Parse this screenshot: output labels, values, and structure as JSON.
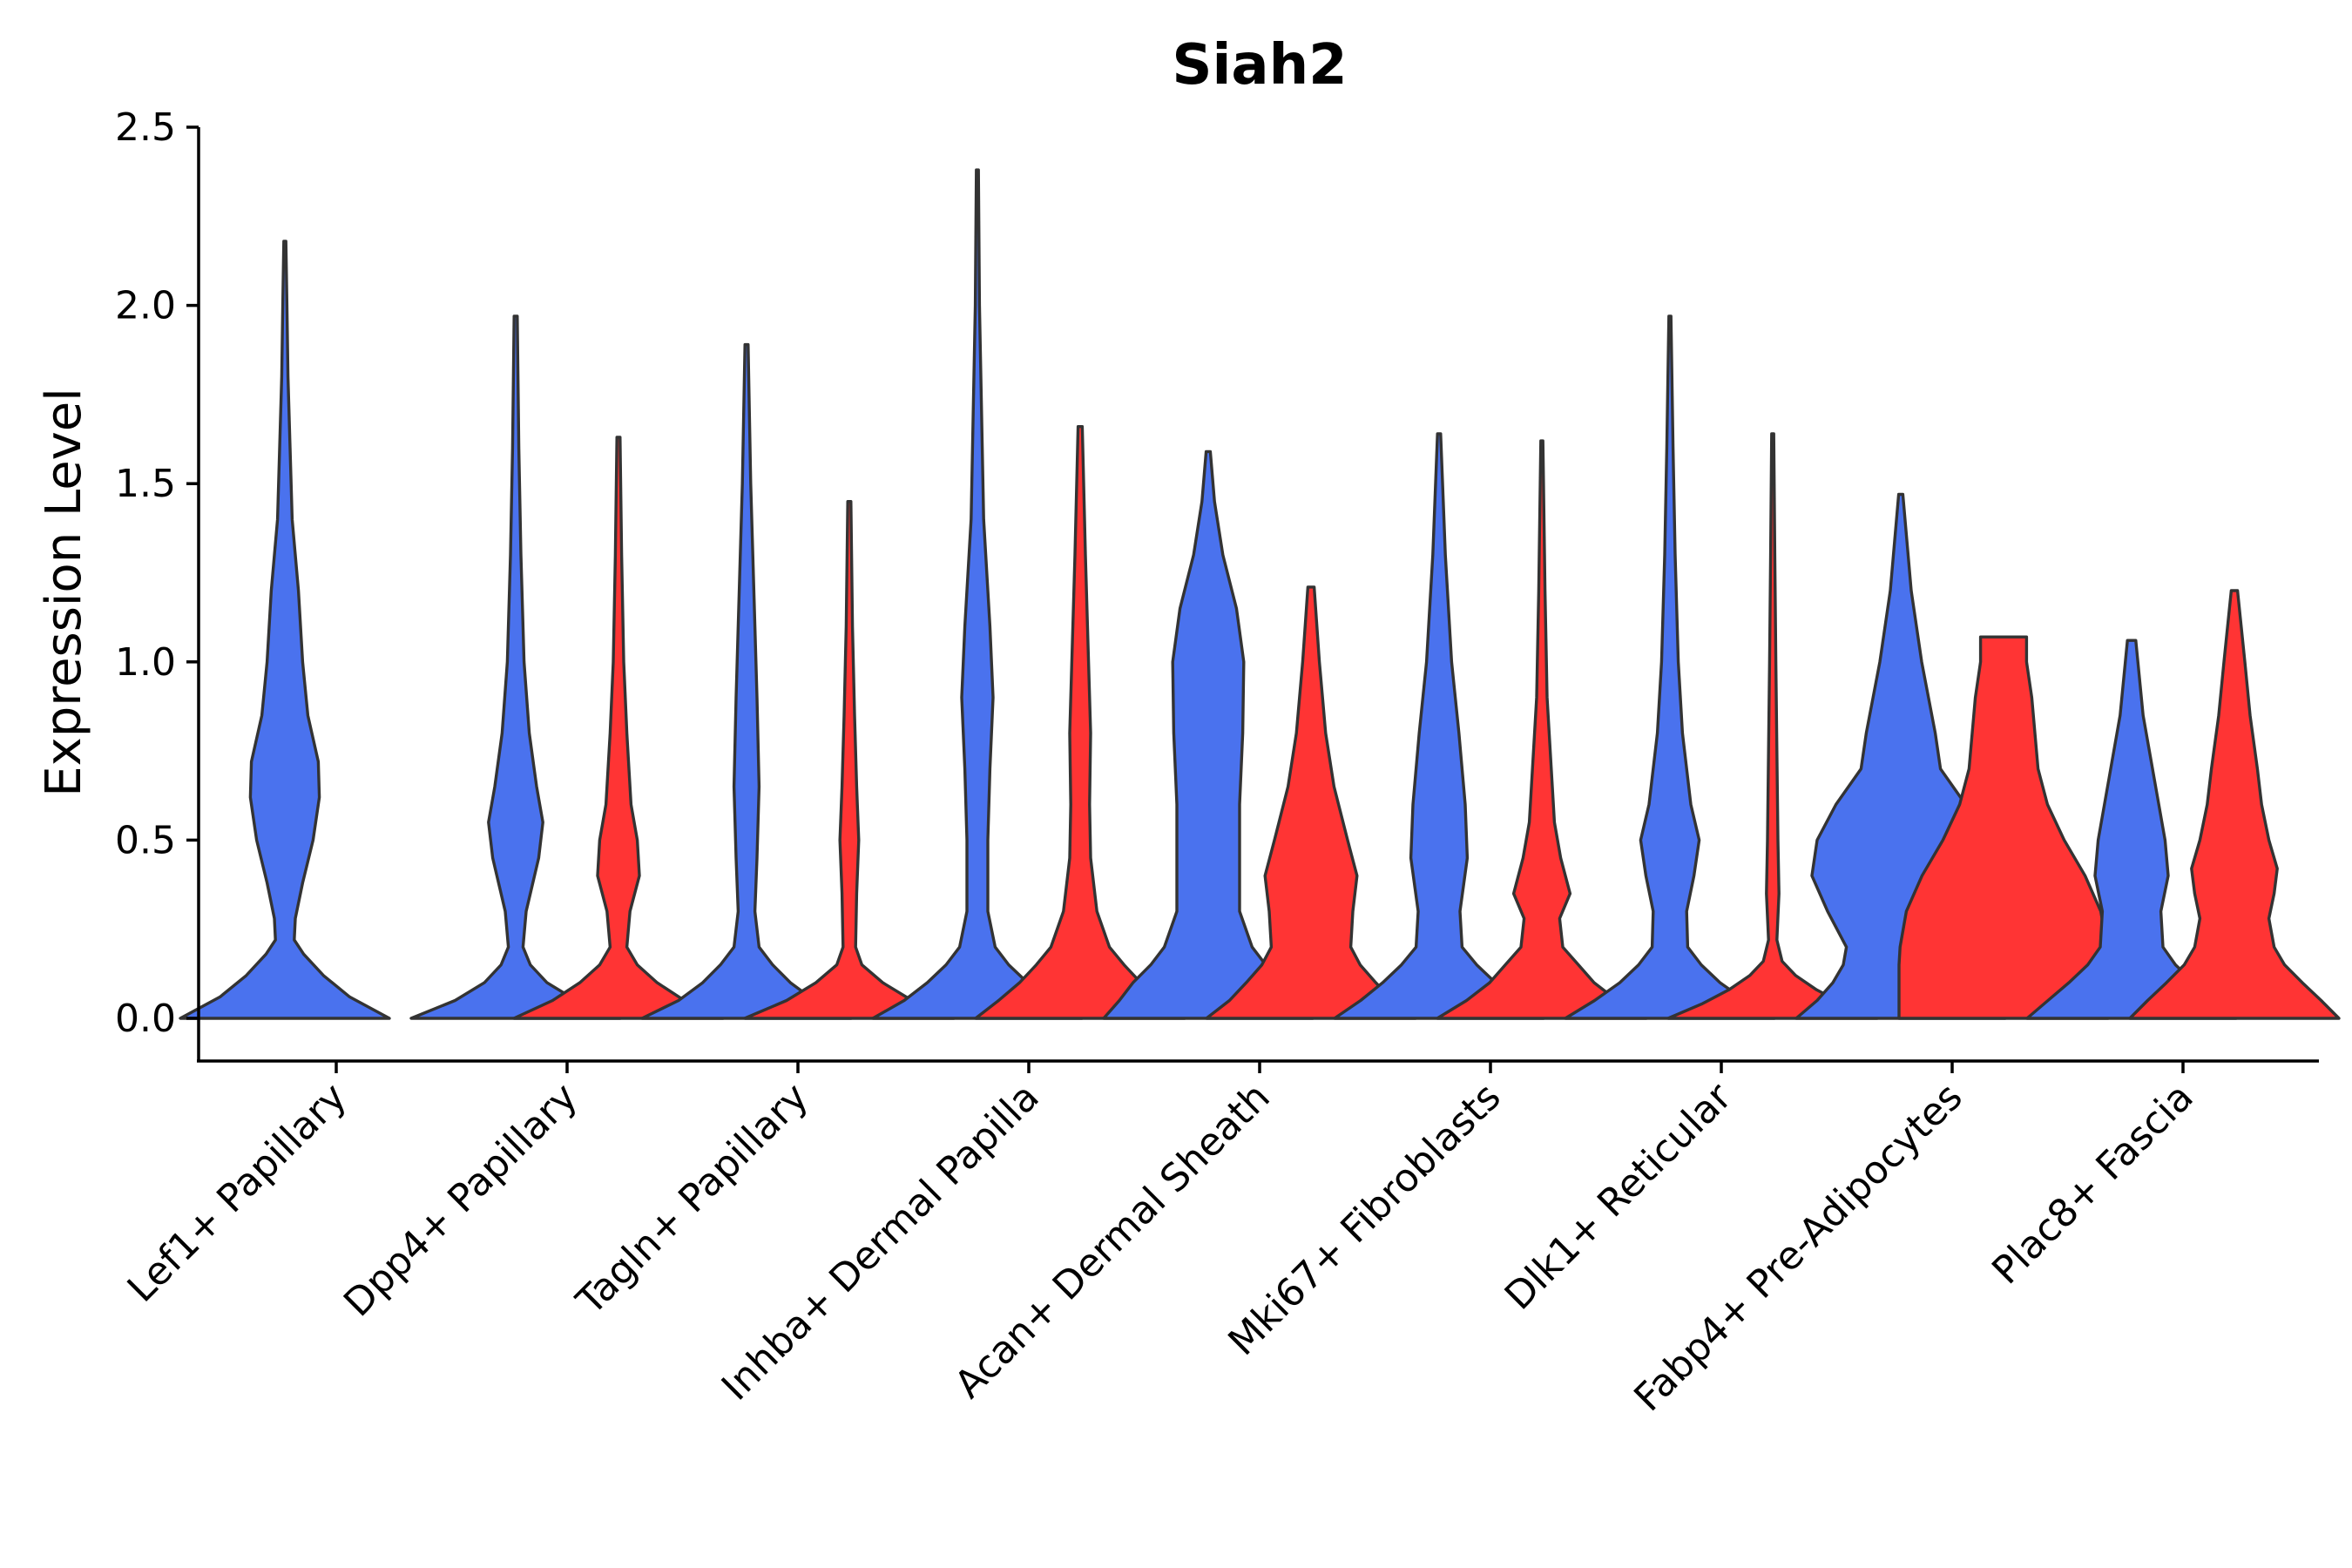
{
  "chart_data": {
    "type": "violin",
    "title": "Siah2",
    "xlabel": "",
    "ylabel": "Expression Level",
    "ylim": [
      -0.12,
      2.5
    ],
    "yticks": [
      "0.0",
      "0.5",
      "1.0",
      "1.5",
      "2.0",
      "2.5"
    ],
    "grid": false,
    "legend": "none",
    "colors": {
      "blue": "#4A72EE",
      "red": "#FF3434",
      "outline": "#333333"
    },
    "categories": [
      "Lef1+ Papillary",
      "Dpp4+ Papillary",
      "Tagln+ Papillary",
      "Inhba+ Dermal Papilla",
      "Acan+ Dermal Sheath",
      "Mki67+ Fibroblasts",
      "Dlk1+ Reticular",
      "Fabp4+ Pre-Adipocytes",
      "Plac8+ Fascia"
    ],
    "violins": [
      {
        "category": "Lef1+ Papillary",
        "split": "blue",
        "max": 2.18,
        "profile": [
          [
            0,
            1.0
          ],
          [
            0.06,
            0.62
          ],
          [
            0.12,
            0.37
          ],
          [
            0.18,
            0.18
          ],
          [
            0.22,
            0.09
          ],
          [
            0.28,
            0.1
          ],
          [
            0.38,
            0.17
          ],
          [
            0.5,
            0.27
          ],
          [
            0.62,
            0.33
          ],
          [
            0.72,
            0.32
          ],
          [
            0.85,
            0.22
          ],
          [
            1.0,
            0.17
          ],
          [
            1.2,
            0.13
          ],
          [
            1.4,
            0.07
          ],
          [
            1.6,
            0.05
          ],
          [
            1.8,
            0.03
          ],
          [
            2.0,
            0.02
          ],
          [
            2.18,
            0.01
          ]
        ]
      },
      {
        "category": "Dpp4+ Papillary",
        "split": "blue",
        "max": 1.97,
        "profile": [
          [
            0,
            1.0
          ],
          [
            0.05,
            0.58
          ],
          [
            0.1,
            0.3
          ],
          [
            0.15,
            0.14
          ],
          [
            0.2,
            0.07
          ],
          [
            0.3,
            0.1
          ],
          [
            0.45,
            0.22
          ],
          [
            0.55,
            0.26
          ],
          [
            0.65,
            0.2
          ],
          [
            0.8,
            0.13
          ],
          [
            1.0,
            0.08
          ],
          [
            1.3,
            0.05
          ],
          [
            1.6,
            0.03
          ],
          [
            1.97,
            0.015
          ]
        ]
      },
      {
        "category": "Dpp4+ Papillary",
        "split": "red",
        "max": 1.63,
        "profile": [
          [
            0,
            1.0
          ],
          [
            0.05,
            0.63
          ],
          [
            0.1,
            0.37
          ],
          [
            0.15,
            0.18
          ],
          [
            0.2,
            0.08
          ],
          [
            0.3,
            0.11
          ],
          [
            0.4,
            0.2
          ],
          [
            0.5,
            0.18
          ],
          [
            0.6,
            0.12
          ],
          [
            0.8,
            0.08
          ],
          [
            1.0,
            0.05
          ],
          [
            1.3,
            0.03
          ],
          [
            1.63,
            0.015
          ]
        ]
      },
      {
        "category": "Tagln+ Papillary",
        "split": "blue",
        "max": 1.89,
        "profile": [
          [
            0,
            1.0
          ],
          [
            0.05,
            0.65
          ],
          [
            0.1,
            0.42
          ],
          [
            0.15,
            0.25
          ],
          [
            0.2,
            0.12
          ],
          [
            0.3,
            0.08
          ],
          [
            0.45,
            0.1
          ],
          [
            0.65,
            0.12
          ],
          [
            0.9,
            0.1
          ],
          [
            1.2,
            0.07
          ],
          [
            1.5,
            0.04
          ],
          [
            1.89,
            0.015
          ]
        ]
      },
      {
        "category": "Tagln+ Papillary",
        "split": "red",
        "max": 1.45,
        "profile": [
          [
            0,
            1.0
          ],
          [
            0.05,
            0.6
          ],
          [
            0.1,
            0.32
          ],
          [
            0.15,
            0.12
          ],
          [
            0.2,
            0.06
          ],
          [
            0.35,
            0.07
          ],
          [
            0.5,
            0.09
          ],
          [
            0.65,
            0.07
          ],
          [
            0.85,
            0.05
          ],
          [
            1.1,
            0.03
          ],
          [
            1.45,
            0.015
          ]
        ]
      },
      {
        "category": "Inhba+ Dermal Papilla",
        "split": "blue",
        "max": 2.38,
        "profile": [
          [
            0,
            1.0
          ],
          [
            0.05,
            0.7
          ],
          [
            0.1,
            0.48
          ],
          [
            0.15,
            0.3
          ],
          [
            0.2,
            0.17
          ],
          [
            0.3,
            0.1
          ],
          [
            0.5,
            0.1
          ],
          [
            0.7,
            0.12
          ],
          [
            0.9,
            0.15
          ],
          [
            1.1,
            0.12
          ],
          [
            1.4,
            0.06
          ],
          [
            1.7,
            0.04
          ],
          [
            2.0,
            0.02
          ],
          [
            2.38,
            0.01
          ]
        ]
      },
      {
        "category": "Inhba+ Dermal Papilla",
        "split": "red",
        "max": 1.66,
        "profile": [
          [
            0,
            1.0
          ],
          [
            0.05,
            0.78
          ],
          [
            0.1,
            0.58
          ],
          [
            0.15,
            0.42
          ],
          [
            0.2,
            0.28
          ],
          [
            0.3,
            0.16
          ],
          [
            0.45,
            0.1
          ],
          [
            0.6,
            0.09
          ],
          [
            0.8,
            0.1
          ],
          [
            1.0,
            0.08
          ],
          [
            1.3,
            0.05
          ],
          [
            1.66,
            0.02
          ]
        ]
      },
      {
        "category": "Acan+ Dermal Sheath",
        "split": "blue",
        "max": 1.59,
        "profile": [
          [
            0,
            1.0
          ],
          [
            0.05,
            0.85
          ],
          [
            0.1,
            0.72
          ],
          [
            0.15,
            0.55
          ],
          [
            0.2,
            0.42
          ],
          [
            0.3,
            0.3
          ],
          [
            0.45,
            0.3
          ],
          [
            0.6,
            0.3
          ],
          [
            0.8,
            0.33
          ],
          [
            1.0,
            0.34
          ],
          [
            1.15,
            0.27
          ],
          [
            1.3,
            0.14
          ],
          [
            1.45,
            0.06
          ],
          [
            1.59,
            0.02
          ]
        ]
      },
      {
        "category": "Acan+ Dermal Sheath",
        "split": "red",
        "max": 1.21,
        "profile": [
          [
            0,
            1.0
          ],
          [
            0.05,
            0.78
          ],
          [
            0.1,
            0.62
          ],
          [
            0.15,
            0.47
          ],
          [
            0.2,
            0.38
          ],
          [
            0.3,
            0.4
          ],
          [
            0.4,
            0.44
          ],
          [
            0.5,
            0.35
          ],
          [
            0.65,
            0.22
          ],
          [
            0.8,
            0.14
          ],
          [
            1.0,
            0.08
          ],
          [
            1.21,
            0.03
          ]
        ]
      },
      {
        "category": "Mki67+ Fibroblasts",
        "split": "blue",
        "max": 1.64,
        "profile": [
          [
            0,
            1.0
          ],
          [
            0.05,
            0.75
          ],
          [
            0.1,
            0.54
          ],
          [
            0.15,
            0.36
          ],
          [
            0.2,
            0.22
          ],
          [
            0.3,
            0.2
          ],
          [
            0.45,
            0.27
          ],
          [
            0.6,
            0.25
          ],
          [
            0.8,
            0.19
          ],
          [
            1.0,
            0.12
          ],
          [
            1.3,
            0.06
          ],
          [
            1.64,
            0.015
          ]
        ]
      },
      {
        "category": "Mki67+ Fibroblasts",
        "split": "red",
        "max": 1.62,
        "profile": [
          [
            0,
            1.0
          ],
          [
            0.05,
            0.72
          ],
          [
            0.1,
            0.5
          ],
          [
            0.15,
            0.35
          ],
          [
            0.2,
            0.2
          ],
          [
            0.28,
            0.17
          ],
          [
            0.35,
            0.27
          ],
          [
            0.45,
            0.18
          ],
          [
            0.55,
            0.12
          ],
          [
            0.7,
            0.09
          ],
          [
            0.9,
            0.05
          ],
          [
            1.2,
            0.03
          ],
          [
            1.62,
            0.01
          ]
        ]
      },
      {
        "category": "Dlk1+ Reticular",
        "split": "blue",
        "max": 1.97,
        "profile": [
          [
            0,
            1.0
          ],
          [
            0.05,
            0.72
          ],
          [
            0.1,
            0.48
          ],
          [
            0.15,
            0.3
          ],
          [
            0.2,
            0.17
          ],
          [
            0.3,
            0.16
          ],
          [
            0.4,
            0.23
          ],
          [
            0.5,
            0.28
          ],
          [
            0.6,
            0.2
          ],
          [
            0.8,
            0.12
          ],
          [
            1.0,
            0.08
          ],
          [
            1.3,
            0.05
          ],
          [
            1.6,
            0.03
          ],
          [
            1.97,
            0.01
          ]
        ]
      },
      {
        "category": "Dlk1+ Reticular",
        "split": "red",
        "max": 1.64,
        "profile": [
          [
            0,
            1.0
          ],
          [
            0.04,
            0.68
          ],
          [
            0.08,
            0.42
          ],
          [
            0.12,
            0.22
          ],
          [
            0.16,
            0.09
          ],
          [
            0.22,
            0.04
          ],
          [
            0.35,
            0.06
          ],
          [
            0.5,
            0.05
          ],
          [
            0.75,
            0.04
          ],
          [
            1.0,
            0.03
          ],
          [
            1.3,
            0.02
          ],
          [
            1.64,
            0.01
          ]
        ]
      },
      {
        "category": "Fabp4+ Pre-Adipocytes",
        "split": "blue",
        "max": 1.47,
        "profile": [
          [
            0,
            1.0
          ],
          [
            0.05,
            0.8
          ],
          [
            0.1,
            0.65
          ],
          [
            0.15,
            0.55
          ],
          [
            0.2,
            0.52
          ],
          [
            0.3,
            0.7
          ],
          [
            0.4,
            0.85
          ],
          [
            0.5,
            0.8
          ],
          [
            0.6,
            0.62
          ],
          [
            0.7,
            0.38
          ],
          [
            0.8,
            0.33
          ],
          [
            1.0,
            0.2
          ],
          [
            1.2,
            0.1
          ],
          [
            1.47,
            0.02
          ]
        ]
      },
      {
        "category": "Fabp4+ Pre-Adipocytes",
        "split": "red",
        "max": 1.07,
        "profile": [
          [
            0,
            1.0
          ],
          [
            0.05,
            1.0
          ],
          [
            0.1,
            1.0
          ],
          [
            0.15,
            1.0
          ],
          [
            0.2,
            0.99
          ],
          [
            0.3,
            0.93
          ],
          [
            0.4,
            0.78
          ],
          [
            0.5,
            0.58
          ],
          [
            0.6,
            0.42
          ],
          [
            0.7,
            0.33
          ],
          [
            0.8,
            0.3
          ],
          [
            0.9,
            0.27
          ],
          [
            1.0,
            0.22
          ],
          [
            1.07,
            0.22
          ]
        ]
      },
      {
        "category": "Plac8+ Fascia",
        "split": "blue",
        "max": 1.06,
        "profile": [
          [
            0,
            1.0
          ],
          [
            0.05,
            0.8
          ],
          [
            0.1,
            0.6
          ],
          [
            0.15,
            0.42
          ],
          [
            0.2,
            0.3
          ],
          [
            0.3,
            0.28
          ],
          [
            0.4,
            0.35
          ],
          [
            0.5,
            0.32
          ],
          [
            0.6,
            0.26
          ],
          [
            0.7,
            0.2
          ],
          [
            0.85,
            0.11
          ],
          [
            1.0,
            0.06
          ],
          [
            1.06,
            0.04
          ]
        ]
      },
      {
        "category": "Plac8+ Fascia",
        "split": "red",
        "max": 1.2,
        "profile": [
          [
            0,
            1.0
          ],
          [
            0.05,
            0.83
          ],
          [
            0.1,
            0.65
          ],
          [
            0.15,
            0.48
          ],
          [
            0.2,
            0.38
          ],
          [
            0.28,
            0.33
          ],
          [
            0.35,
            0.38
          ],
          [
            0.42,
            0.41
          ],
          [
            0.5,
            0.33
          ],
          [
            0.6,
            0.26
          ],
          [
            0.7,
            0.22
          ],
          [
            0.85,
            0.15
          ],
          [
            1.0,
            0.1
          ],
          [
            1.2,
            0.03
          ]
        ]
      }
    ]
  }
}
